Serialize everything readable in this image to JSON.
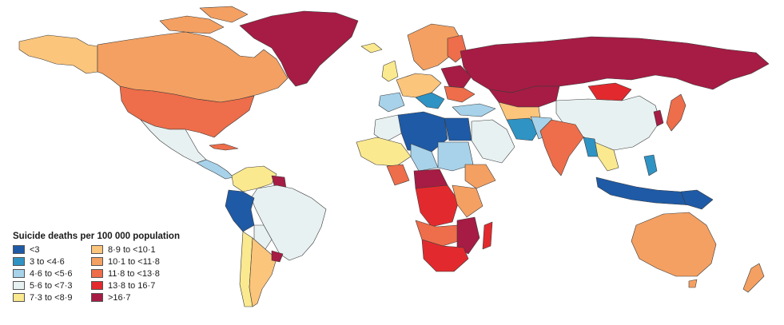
{
  "map": {
    "legend": {
      "title": "Suicide deaths per 100 000 population",
      "items": [
        {
          "label": "<3",
          "color": "#1e5aa6"
        },
        {
          "label": "3 to <4·6",
          "color": "#2f93c4"
        },
        {
          "label": "4·6 to <5·6",
          "color": "#a7d2ea"
        },
        {
          "label": "5·6 to <7·3",
          "color": "#e8f1f1"
        },
        {
          "label": "7·3 to <8·9",
          "color": "#fbe98f"
        },
        {
          "label": "8·9 to <10·1",
          "color": "#fbc57c"
        },
        {
          "label": "10·1 to <11·8",
          "color": "#f4a062"
        },
        {
          "label": "11·8 to <13·8",
          "color": "#ee6d4a"
        },
        {
          "label": "13·8 to 16·7",
          "color": "#e22a2e"
        },
        {
          "label": ">16·7",
          "color": "#a61c44"
        }
      ],
      "no_data_color": "#a8a8a8"
    }
  }
}
